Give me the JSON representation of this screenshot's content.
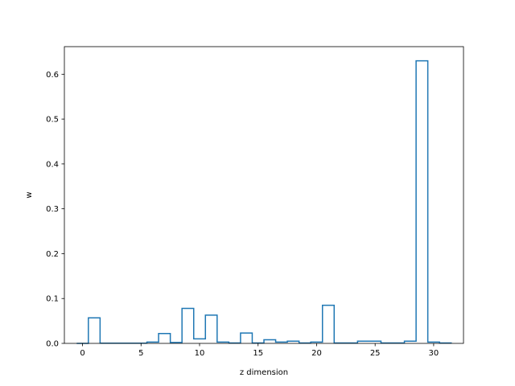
{
  "chart_data": {
    "type": "bar",
    "style": "step-outline",
    "title": "",
    "xlabel": "z dimension",
    "ylabel": "w",
    "xlim": [
      -1.55,
      32.55
    ],
    "ylim": [
      0,
      0.6615
    ],
    "xticks": [
      0,
      5,
      10,
      15,
      20,
      25,
      30
    ],
    "yticks": [
      0.0,
      0.1,
      0.2,
      0.3,
      0.4,
      0.5,
      0.6
    ],
    "ytick_labels": [
      "0.0",
      "0.1",
      "0.2",
      "0.3",
      "0.4",
      "0.5",
      "0.6"
    ],
    "categories": [
      0,
      1,
      2,
      3,
      4,
      5,
      6,
      7,
      8,
      9,
      10,
      11,
      12,
      13,
      14,
      15,
      16,
      17,
      18,
      19,
      20,
      21,
      22,
      23,
      24,
      25,
      26,
      27,
      28,
      29,
      30,
      31
    ],
    "values": [
      0.0,
      0.057,
      0.0005,
      0.0005,
      0.0005,
      0.0005,
      0.003,
      0.022,
      0.002,
      0.078,
      0.01,
      0.063,
      0.003,
      0.001,
      0.023,
      0.001,
      0.008,
      0.003,
      0.005,
      0.001,
      0.003,
      0.085,
      0.001,
      0.001,
      0.005,
      0.005,
      0.001,
      0.001,
      0.005,
      0.63,
      0.003,
      0.001
    ],
    "grid": false,
    "colors": {
      "line": "#1f77b4",
      "axes": "#000000",
      "background": "#ffffff"
    }
  }
}
